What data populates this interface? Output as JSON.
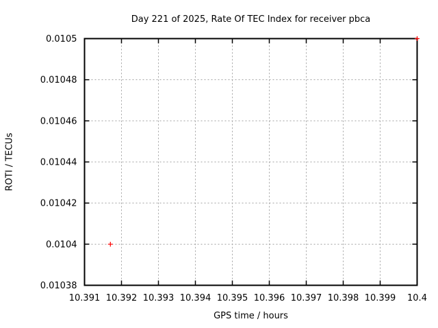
{
  "chart_data": {
    "type": "scatter",
    "title": "Day 221 of 2025, Rate Of TEC Index for receiver pbca",
    "xlabel": "GPS time / hours",
    "ylabel": "ROTI / TECUs",
    "xlim": [
      10.391,
      10.4
    ],
    "ylim": [
      0.01038,
      0.0105
    ],
    "xticks": {
      "values": [
        10.391,
        10.392,
        10.393,
        10.394,
        10.395,
        10.396,
        10.397,
        10.398,
        10.399,
        10.4
      ],
      "labels": [
        "10.391",
        "10.392",
        "10.393",
        "10.394",
        "10.395",
        "10.396",
        "10.397",
        "10.398",
        "10.399",
        "10.4"
      ]
    },
    "yticks": {
      "values": [
        0.01038,
        0.0104,
        0.01042,
        0.01044,
        0.01046,
        0.01048,
        0.0105
      ],
      "labels": [
        "0.01038",
        "0.0104",
        "0.01042",
        "0.01044",
        "0.01046",
        "0.01048",
        "0.0105"
      ]
    },
    "grid": true,
    "legend": false,
    "series": [
      {
        "name": "ROTI",
        "marker": "+",
        "color": "#ff0000",
        "points": [
          {
            "x": 10.3917,
            "y": 0.0104
          },
          {
            "x": 10.4,
            "y": 0.0105
          }
        ]
      }
    ],
    "colors": {
      "background": "#ffffff",
      "axis": "#000000",
      "grid": "#a0a0a0",
      "text": "#000000",
      "marker": "#ff0000"
    }
  }
}
